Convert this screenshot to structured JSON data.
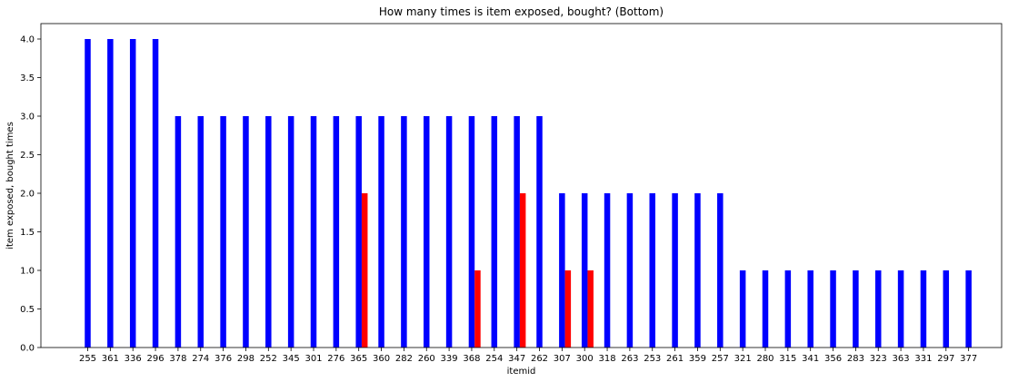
{
  "chart_data": {
    "type": "bar",
    "title": "How many times is item exposed, bought? (Bottom)",
    "xlabel": "itemid",
    "ylabel": "item exposed, bought times",
    "ylim": [
      0,
      4.2
    ],
    "yticks": [
      "0.0",
      "0.5",
      "1.0",
      "1.5",
      "2.0",
      "2.5",
      "3.0",
      "3.5",
      "4.0"
    ],
    "grid": false,
    "categories": [
      "255",
      "361",
      "336",
      "296",
      "378",
      "274",
      "376",
      "298",
      "252",
      "345",
      "301",
      "276",
      "365",
      "360",
      "282",
      "260",
      "339",
      "368",
      "254",
      "347",
      "262",
      "307",
      "300",
      "318",
      "263",
      "253",
      "261",
      "359",
      "257",
      "321",
      "280",
      "315",
      "341",
      "356",
      "283",
      "323",
      "363",
      "331",
      "297",
      "377"
    ],
    "series": [
      {
        "color": "#0000ff",
        "values": [
          4,
          4,
          4,
          4,
          3,
          3,
          3,
          3,
          3,
          3,
          3,
          3,
          3,
          3,
          3,
          3,
          3,
          3,
          3,
          3,
          3,
          2,
          2,
          2,
          2,
          2,
          2,
          2,
          2,
          1,
          1,
          1,
          1,
          1,
          1,
          1,
          1,
          1,
          1,
          1
        ]
      },
      {
        "color": "#ff0000",
        "values": [
          0,
          0,
          0,
          0,
          0,
          0,
          0,
          0,
          0,
          0,
          0,
          0,
          2,
          0,
          0,
          0,
          0,
          1,
          0,
          2,
          0,
          1,
          1,
          0,
          0,
          0,
          0,
          0,
          0,
          0,
          0,
          0,
          0,
          0,
          0,
          0,
          0,
          0,
          0,
          0
        ]
      }
    ]
  }
}
